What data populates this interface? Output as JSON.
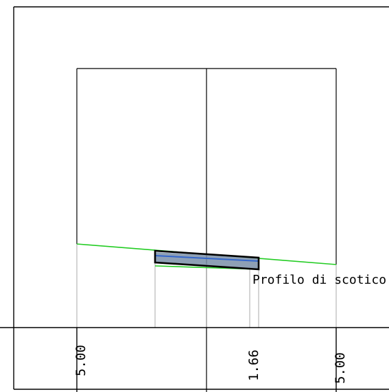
{
  "annotation": "Profilo  di  scotico",
  "dimensions": {
    "left": "5.00",
    "mid": "1.66",
    "right": "5.00"
  },
  "colors": {
    "background": "#ffffff",
    "lines": "#000000",
    "ground_profile": "#22cc22",
    "guide_lines": "#aaaaaa",
    "section_fill": "#7a8fa8",
    "section_blue": "#3366cc"
  }
}
